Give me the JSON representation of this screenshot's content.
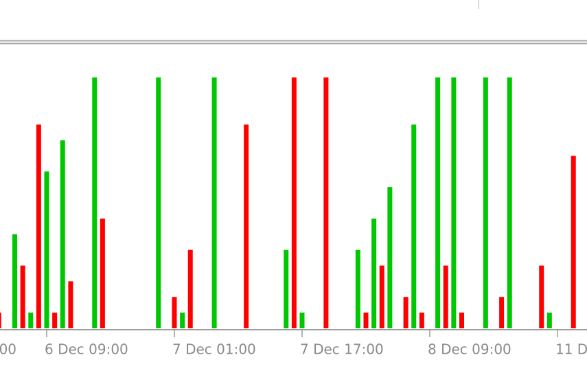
{
  "chart_data": {
    "type": "bar",
    "xlim": [
      0.15,
      73.7
    ],
    "xticks": [
      {
        "value": -10,
        "label": "00"
      },
      {
        "value": 6,
        "label": "6 Dec 09:00"
      },
      {
        "value": 22,
        "label": "7 Dec 01:00"
      },
      {
        "value": 38,
        "label": "7 Dec 17:00"
      },
      {
        "value": 54,
        "label": "8 Dec 09:00"
      },
      {
        "value": 70,
        "label": "11 D"
      }
    ],
    "ylim": [
      0,
      16
    ],
    "series": [
      {
        "color": "#00c800",
        "x": [
          2,
          4,
          6,
          8,
          12,
          20,
          23,
          27,
          36,
          38,
          45,
          47,
          49,
          52,
          55,
          57,
          61,
          64,
          69
        ],
        "values": [
          6,
          1,
          10,
          12,
          16,
          16,
          1,
          16,
          5,
          1,
          5,
          7,
          9,
          13,
          16,
          16,
          16,
          16,
          1
        ]
      },
      {
        "color": "#ff0000",
        "x": [
          0,
          3,
          5,
          7,
          9,
          13,
          22,
          24,
          31,
          37,
          41,
          46,
          48,
          51,
          53,
          56,
          58,
          63,
          68,
          72
        ],
        "values": [
          1,
          4,
          13,
          1,
          3,
          7,
          2,
          5,
          13,
          16,
          16,
          1,
          4,
          2,
          1,
          4,
          1,
          2,
          4,
          11
        ]
      }
    ]
  }
}
